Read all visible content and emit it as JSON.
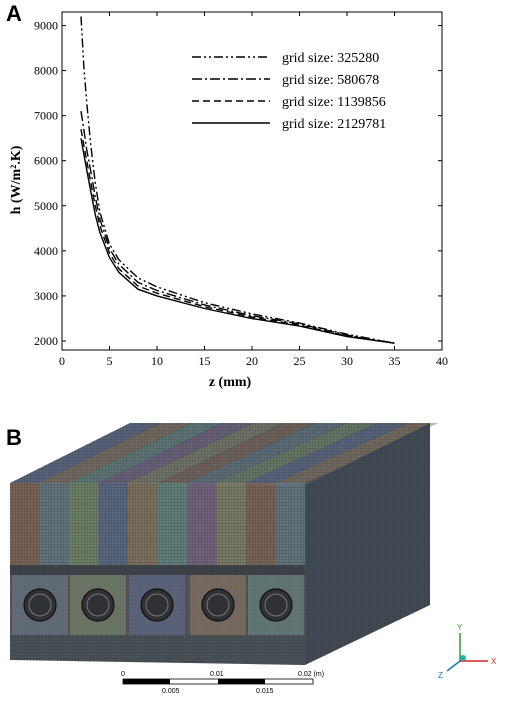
{
  "panels": {
    "a_label": "A",
    "b_label": "B"
  },
  "chart_data": {
    "type": "line",
    "xlabel": "z (mm)",
    "ylabel": "h (W/m².K)",
    "xlim": [
      0,
      40
    ],
    "ylim": [
      1800,
      9300
    ],
    "xticks": [
      0,
      5,
      10,
      15,
      20,
      25,
      30,
      35,
      40
    ],
    "yticks": [
      2000,
      3000,
      4000,
      5000,
      6000,
      7000,
      8000,
      9000
    ],
    "grid": false,
    "legend_position": "top-right",
    "series": [
      {
        "name": "grid size: 325280",
        "dash": "dashdotdot",
        "x": [
          2,
          2.3,
          2.6,
          3,
          3.5,
          4,
          5,
          6,
          8,
          10,
          15,
          20,
          25,
          30,
          35
        ],
        "y": [
          9200,
          8100,
          7300,
          6400,
          5500,
          4850,
          4150,
          3800,
          3400,
          3200,
          2850,
          2600,
          2400,
          2150,
          1950
        ]
      },
      {
        "name": "grid size: 580678",
        "dash": "dashdot",
        "x": [
          2,
          2.3,
          2.6,
          3,
          3.5,
          4,
          5,
          6,
          8,
          10,
          15,
          20,
          25,
          30,
          35
        ],
        "y": [
          7100,
          6700,
          6250,
          5800,
          5200,
          4700,
          4050,
          3700,
          3300,
          3120,
          2800,
          2560,
          2380,
          2130,
          1950
        ]
      },
      {
        "name": "grid size: 1139856",
        "dash": "dash",
        "x": [
          2,
          2.3,
          2.6,
          3,
          3.5,
          4,
          5,
          6,
          8,
          10,
          15,
          20,
          25,
          30,
          35
        ],
        "y": [
          6700,
          6350,
          6000,
          5550,
          5000,
          4550,
          3950,
          3600,
          3220,
          3060,
          2760,
          2530,
          2350,
          2110,
          1950
        ]
      },
      {
        "name": "grid size: 2129781",
        "dash": "solid",
        "x": [
          2,
          2.3,
          2.6,
          3,
          3.5,
          4,
          5,
          6,
          8,
          10,
          15,
          20,
          25,
          30,
          35
        ],
        "y": [
          6500,
          6150,
          5800,
          5350,
          4800,
          4400,
          3850,
          3520,
          3150,
          3000,
          2720,
          2500,
          2330,
          2100,
          1950
        ]
      }
    ]
  },
  "mesh": {
    "scale_labels": [
      "0",
      "0.01",
      "0.02 (m)",
      "0.005",
      "0.015"
    ],
    "triad": {
      "x": "X",
      "y": "Y",
      "z": "Z"
    },
    "colors": [
      "#8a6a55",
      "#6a7f8a",
      "#7a8f6a",
      "#5f6f8f",
      "#8f7a5f",
      "#6a8f85",
      "#7f6a8a",
      "#8a8a6a"
    ]
  }
}
